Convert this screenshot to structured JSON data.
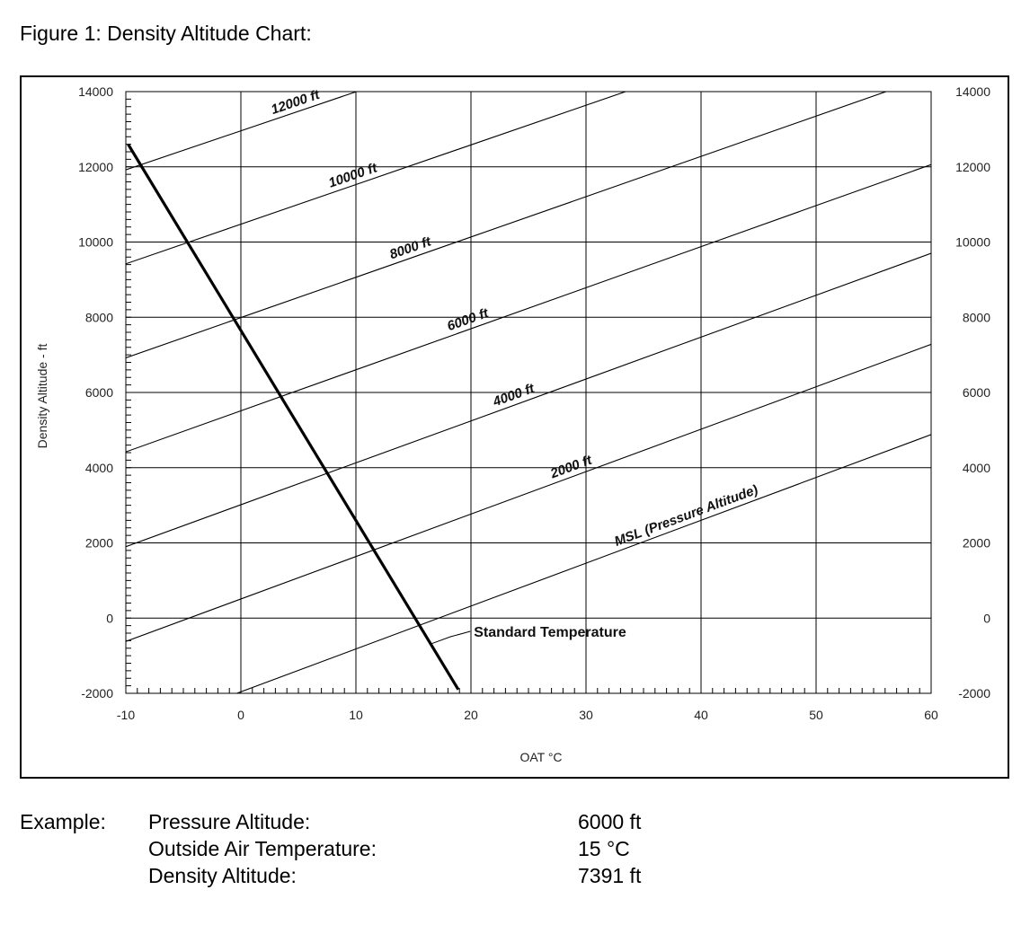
{
  "figure": {
    "title": "Figure 1: Density Altitude Chart:"
  },
  "chart_data": {
    "type": "line",
    "title": "",
    "xlabel": "OAT °C",
    "ylabel": "Density Altitude - ft",
    "xlim": [
      -10,
      60
    ],
    "ylim": [
      -2000,
      14000
    ],
    "x_ticks": [
      -10,
      0,
      10,
      20,
      30,
      40,
      50,
      60
    ],
    "y_ticks": [
      -2000,
      0,
      2000,
      4000,
      6000,
      8000,
      10000,
      12000,
      14000
    ],
    "grid": true,
    "right_axis_duplicate": true,
    "series": [
      {
        "name": "MSL (Pressure Altitude)",
        "x": [
          -10,
          60
        ],
        "y": [
          -3100,
          4880
        ]
      },
      {
        "name": "2000 ft",
        "x": [
          -10,
          60
        ],
        "y": [
          -620,
          7280
        ]
      },
      {
        "name": "4000 ft",
        "x": [
          -10,
          60
        ],
        "y": [
          1900,
          9700
        ]
      },
      {
        "name": "6000 ft",
        "x": [
          -10,
          60
        ],
        "y": [
          4420,
          12060
        ]
      },
      {
        "name": "8000 ft",
        "x": [
          -10,
          60
        ],
        "y": [
          6920,
          14420
        ]
      },
      {
        "name": "10000 ft",
        "x": [
          -10,
          60
        ],
        "y": [
          9420,
          16800
        ]
      },
      {
        "name": "12000 ft",
        "x": [
          -10,
          60
        ],
        "y": [
          11920,
          19180
        ]
      },
      {
        "name": "Standard Temperature",
        "x": [
          -9.8,
          18.9
        ],
        "y": [
          12600,
          -1900
        ]
      }
    ],
    "annotations": [
      "Standard Temperature"
    ]
  },
  "example": {
    "label": "Example:",
    "rows": [
      {
        "key": "Pressure Altitude:",
        "value": "6000 ft"
      },
      {
        "key": "Outside Air Temperature:",
        "value": "15 °C"
      },
      {
        "key": "Density Altitude:",
        "value": "7391 ft"
      }
    ]
  }
}
